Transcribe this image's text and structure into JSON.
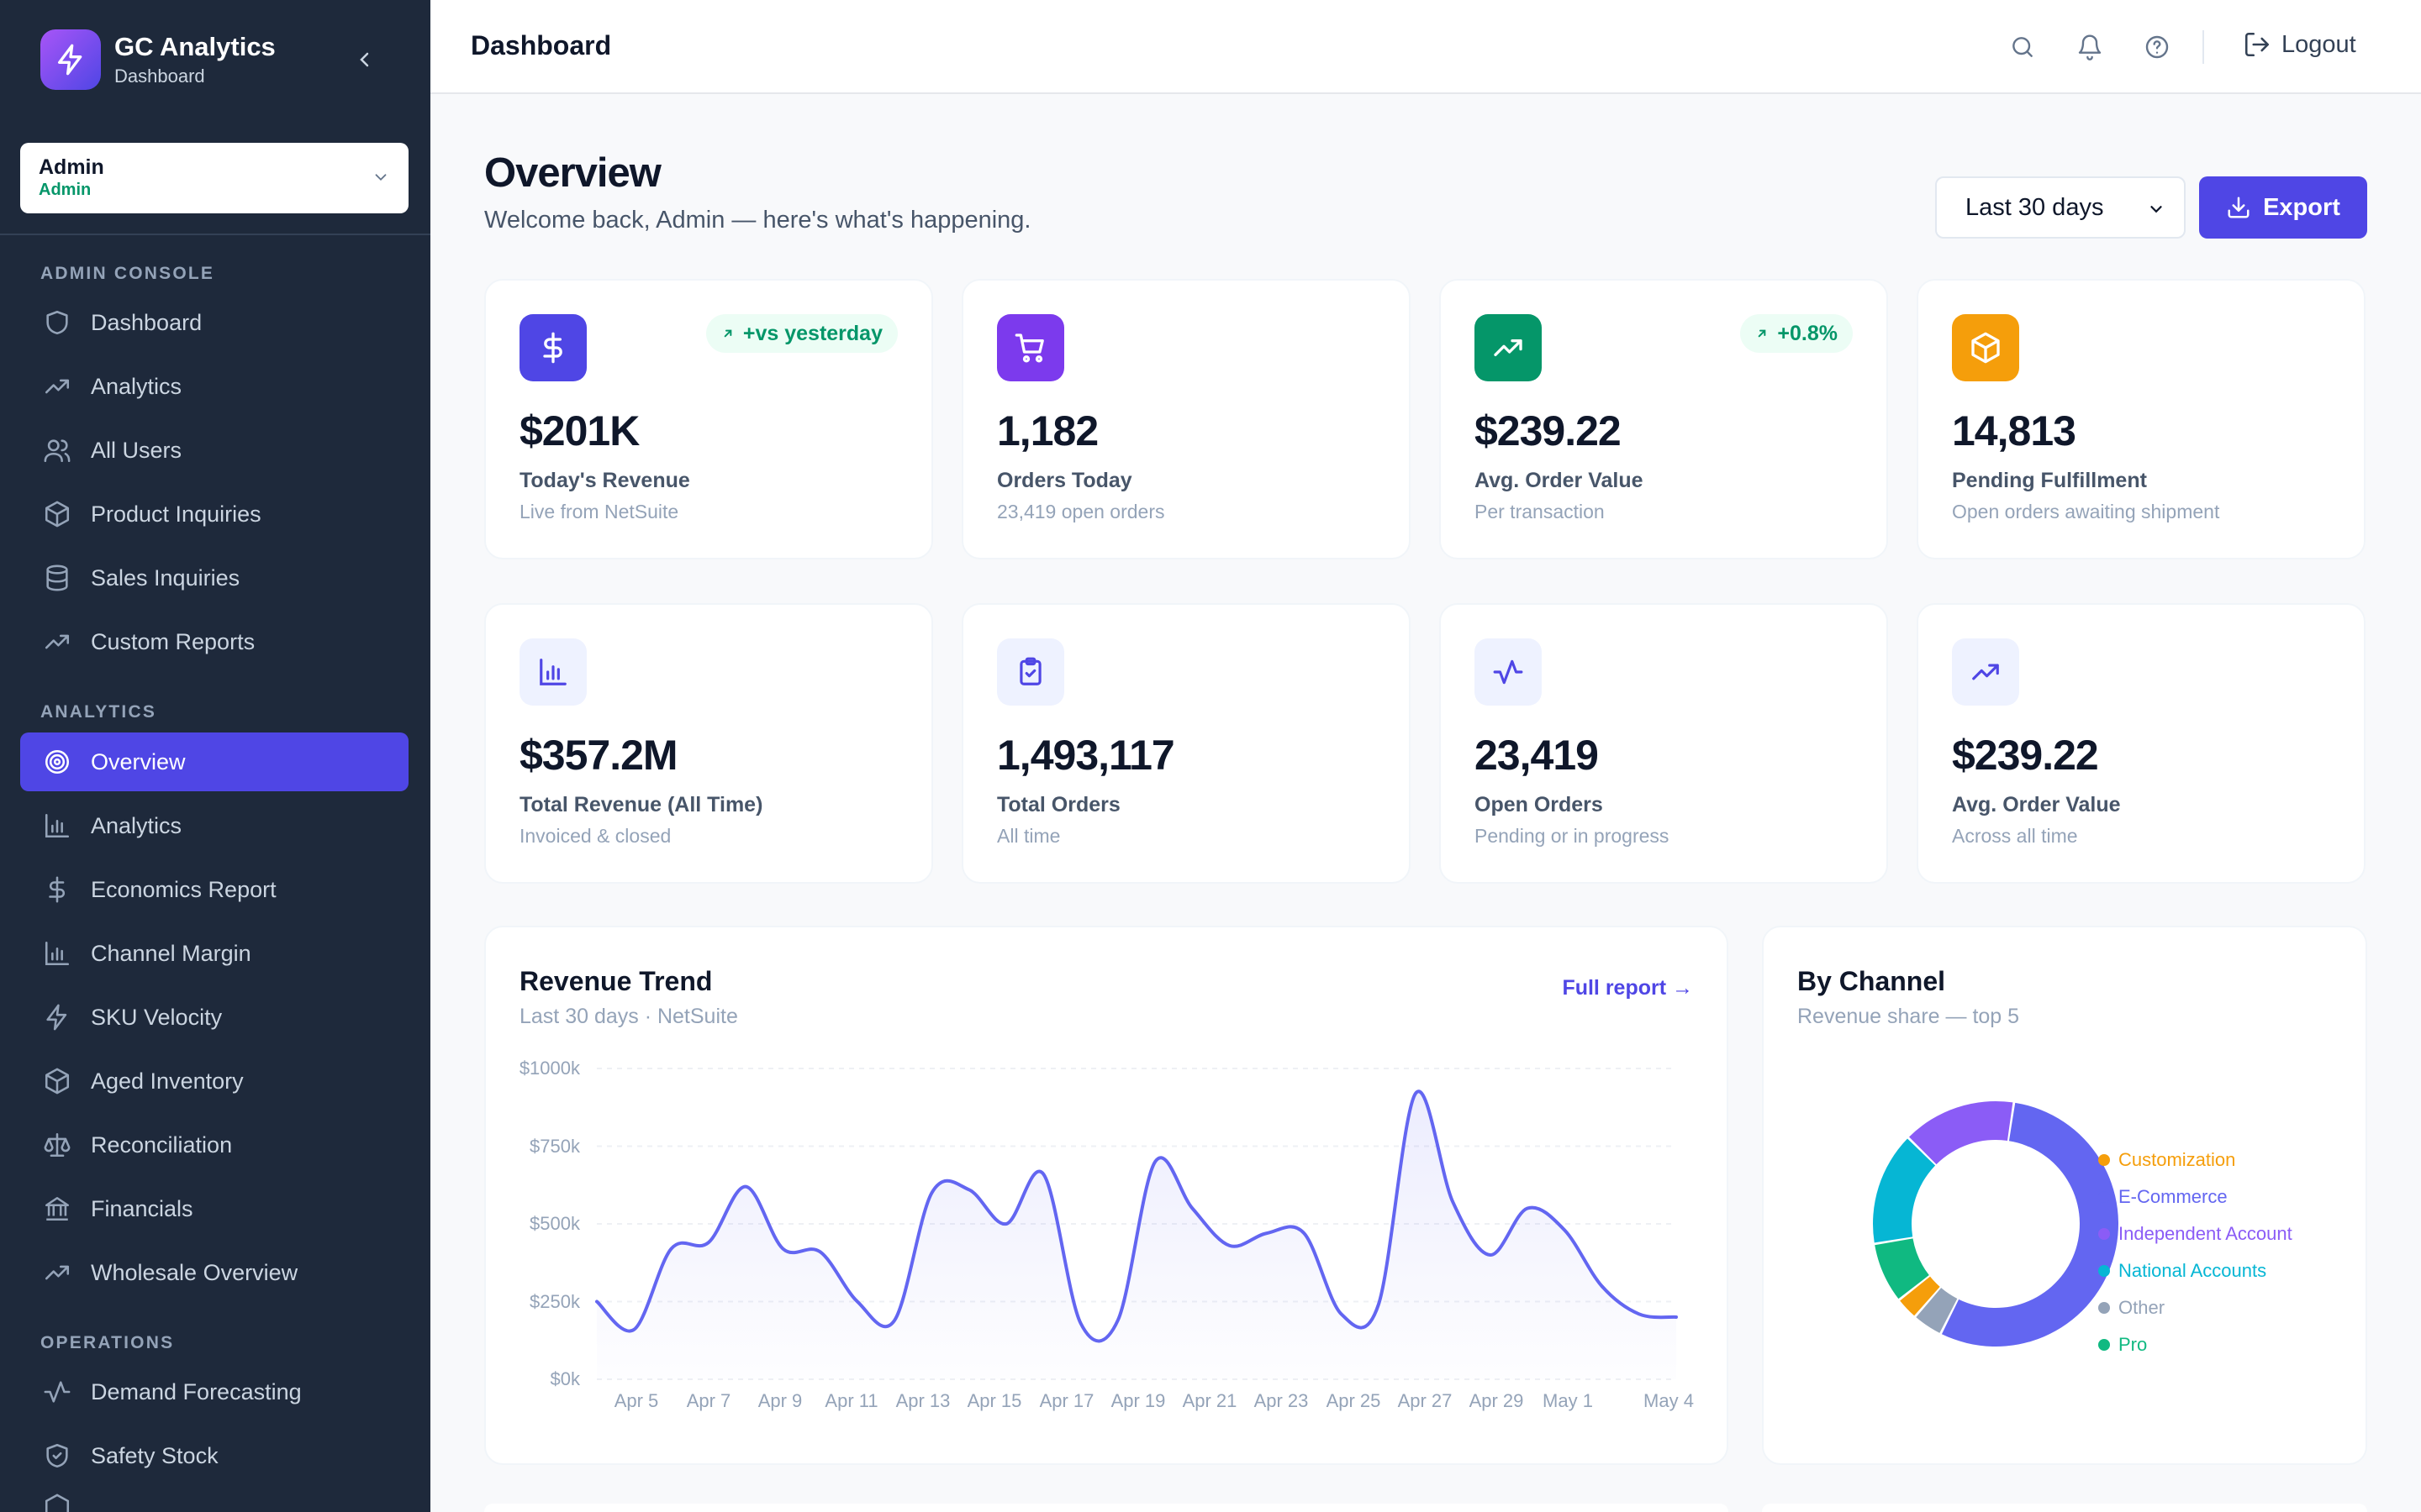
{
  "app": {
    "name": "GC Analytics",
    "subtitle": "Dashboard"
  },
  "user": {
    "name": "Admin",
    "role": "Admin"
  },
  "sidebar": {
    "sections": [
      {
        "title": "ADMIN CONSOLE",
        "items": [
          {
            "label": "Dashboard",
            "icon": "shield-icon"
          },
          {
            "label": "Analytics",
            "icon": "trending-up-icon"
          },
          {
            "label": "All Users",
            "icon": "users-icon"
          },
          {
            "label": "Product Inquiries",
            "icon": "box-icon"
          },
          {
            "label": "Sales Inquiries",
            "icon": "database-icon"
          },
          {
            "label": "Custom Reports",
            "icon": "trending-up-icon"
          }
        ]
      },
      {
        "title": "ANALYTICS",
        "items": [
          {
            "label": "Overview",
            "icon": "target-icon",
            "active": true
          },
          {
            "label": "Analytics",
            "icon": "bar-chart-icon"
          },
          {
            "label": "Economics Report",
            "icon": "dollar-icon"
          },
          {
            "label": "Channel Margin",
            "icon": "bar-chart-icon"
          },
          {
            "label": "SKU Velocity",
            "icon": "lightning-icon"
          },
          {
            "label": "Aged Inventory",
            "icon": "box-icon"
          },
          {
            "label": "Reconciliation",
            "icon": "scale-icon"
          },
          {
            "label": "Financials",
            "icon": "bank-icon"
          },
          {
            "label": "Wholesale Overview",
            "icon": "trending-up-icon"
          }
        ]
      },
      {
        "title": "OPERATIONS",
        "items": [
          {
            "label": "Demand Forecasting",
            "icon": "activity-icon"
          },
          {
            "label": "Safety Stock",
            "icon": "shield-check-icon"
          }
        ]
      }
    ]
  },
  "topbar": {
    "title": "Dashboard",
    "logout_label": "Logout"
  },
  "header": {
    "title": "Overview",
    "subtitle": "Welcome back, Admin — here's what's happening.",
    "range": "Last 30 days",
    "export_label": "Export"
  },
  "cards": [
    {
      "value": "$201K",
      "label": "Today's Revenue",
      "sub": "Live from NetSuite",
      "badge": "+vs yesterday",
      "icon": "dollar-icon",
      "color": "#4f46e5"
    },
    {
      "value": "1,182",
      "label": "Orders Today",
      "sub": "23,419 open orders",
      "icon": "cart-icon",
      "color": "#7c3aed"
    },
    {
      "value": "$239.22",
      "label": "Avg. Order Value",
      "sub": "Per transaction",
      "badge": "+0.8%",
      "icon": "trending-up-icon",
      "color": "#059669"
    },
    {
      "value": "14,813",
      "label": "Pending Fulfillment",
      "sub": "Open orders awaiting shipment",
      "icon": "box-icon",
      "color": "#f59e0b"
    },
    {
      "value": "$357.2M",
      "label": "Total Revenue (All Time)",
      "sub": "Invoiced & closed",
      "icon": "bar-chart-icon",
      "color": "#eef2ff"
    },
    {
      "value": "1,493,117",
      "label": "Total Orders",
      "sub": "All time",
      "icon": "clipboard-check-icon",
      "color": "#eef2ff"
    },
    {
      "value": "23,419",
      "label": "Open Orders",
      "sub": "Pending or in progress",
      "icon": "activity-icon",
      "color": "#eef2ff"
    },
    {
      "value": "$239.22",
      "label": "Avg. Order Value",
      "sub": "Across all time",
      "icon": "trending-up-icon",
      "color": "#eef2ff"
    }
  ],
  "revenue": {
    "title": "Revenue Trend",
    "subtitle": "Last 30 days · NetSuite",
    "link": "Full report →"
  },
  "channel": {
    "title": "By Channel",
    "subtitle": "Revenue share — top 5"
  },
  "chart_data": [
    {
      "type": "line",
      "title": "Revenue Trend",
      "ylim": [
        0,
        1000
      ],
      "y_unit": "k",
      "y_ticks": [
        "$0k",
        "$250k",
        "$500k",
        "$750k",
        "$1000k"
      ],
      "x_ticks": [
        "Apr 5",
        "Apr 7",
        "Apr 9",
        "Apr 11",
        "Apr 13",
        "Apr 15",
        "Apr 17",
        "Apr 19",
        "Apr 21",
        "Apr 23",
        "Apr 25",
        "Apr 27",
        "Apr 29",
        "May 1",
        "May 4"
      ],
      "series": [
        {
          "color": "#6366f1",
          "values": [
            250,
            160,
            420,
            440,
            620,
            420,
            410,
            250,
            190,
            600,
            610,
            500,
            660,
            180,
            190,
            700,
            550,
            430,
            470,
            470,
            210,
            240,
            920,
            570,
            400,
            550,
            480,
            300,
            210,
            200
          ]
        }
      ]
    },
    {
      "type": "pie",
      "title": "By Channel",
      "categories": [
        "Customization",
        "E-Commerce",
        "Independent Account",
        "National Accounts",
        "Other",
        "Pro"
      ],
      "values": [
        3,
        55,
        15,
        15,
        4,
        8
      ],
      "colors": [
        "#f59e0b",
        "#6366f1",
        "#8b5cf6",
        "#06b6d4",
        "#94a3b8",
        "#10b981"
      ]
    }
  ]
}
